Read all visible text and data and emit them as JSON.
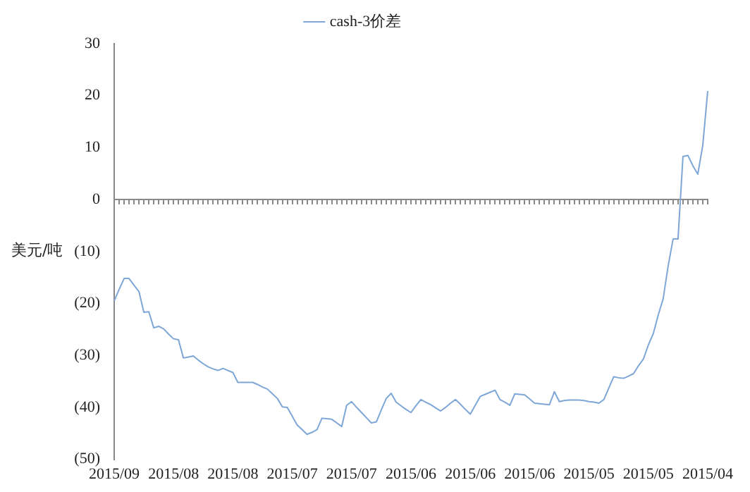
{
  "chart_data": {
    "type": "line",
    "ylabel": "美元/吨",
    "legend": "top",
    "marker": "none",
    "categories": [
      "2015/09",
      null,
      null,
      null,
      null,
      null,
      null,
      null,
      null,
      null,
      null,
      null,
      "2015/08",
      null,
      null,
      null,
      null,
      null,
      null,
      null,
      null,
      null,
      null,
      null,
      "2015/08",
      null,
      null,
      null,
      null,
      null,
      null,
      null,
      null,
      null,
      null,
      null,
      "2015/07",
      null,
      null,
      null,
      null,
      null,
      null,
      null,
      null,
      null,
      null,
      null,
      "2015/07",
      null,
      null,
      null,
      null,
      null,
      null,
      null,
      null,
      null,
      null,
      null,
      "2015/06",
      null,
      null,
      null,
      null,
      null,
      null,
      null,
      null,
      null,
      null,
      null,
      "2015/06",
      null,
      null,
      null,
      null,
      null,
      null,
      null,
      null,
      null,
      null,
      null,
      "2015/06",
      null,
      null,
      null,
      null,
      null,
      null,
      null,
      null,
      null,
      null,
      null,
      "2015/05",
      null,
      null,
      null,
      null,
      null,
      null,
      null,
      null,
      null,
      null,
      null,
      "2015/05",
      null,
      null,
      null,
      null,
      null,
      null,
      null,
      null,
      null,
      null,
      null,
      "2015/04"
    ],
    "series": [
      {
        "name": "cash-3价差",
        "color": "#7ea6d6",
        "values": [
          -19.5,
          -17.3,
          -15.2,
          -15.2,
          -16.5,
          -17.7,
          -21.7,
          -21.6,
          -24.7,
          -24.4,
          -24.9,
          -25.9,
          -26.8,
          -27,
          -30.5,
          -30.3,
          -30.1,
          -30.9,
          -31.6,
          -32.2,
          -32.6,
          -32.9,
          -32.5,
          -32.9,
          -33.3,
          -35.2,
          -35.2,
          -35.2,
          -35.2,
          -35.6,
          -36.1,
          -36.5,
          -37.4,
          -38.3,
          -39.9,
          -40,
          -41.7,
          -43.4,
          -44.3,
          -45.2,
          -44.8,
          -44.3,
          -42.1,
          -42.2,
          -42.3,
          -43,
          -43.7,
          -39.6,
          -38.9,
          -40,
          -41,
          -42,
          -43,
          -42.8,
          -40.5,
          -38.3,
          -37.3,
          -39,
          -39.7,
          -40.4,
          -41,
          -39.7,
          -38.5,
          -39,
          -39.5,
          -40.1,
          -40.7,
          -40,
          -39.2,
          -38.5,
          -39.4,
          -40.4,
          -41.3,
          -39.6,
          -37.9,
          -37.5,
          -37.1,
          -36.7,
          -38.5,
          -39,
          -39.6,
          -37.4,
          -37.5,
          -37.6,
          -38.4,
          -39.2,
          -39.3,
          -39.4,
          -39.5,
          -37,
          -38.9,
          -38.7,
          -38.6,
          -38.6,
          -38.6,
          -38.7,
          -38.9,
          -39,
          -39.2,
          -38.5,
          -36.3,
          -34.1,
          -34.3,
          -34.4,
          -34,
          -33.5,
          -32,
          -30.7,
          -28,
          -25.8,
          -22.2,
          -19.1,
          -12.8,
          -7.6,
          -7.6,
          8.3,
          8.5,
          6.5,
          4.9,
          10.4,
          20.9
        ]
      }
    ],
    "ylim": [
      -50,
      30
    ],
    "yticks": [
      {
        "value": -50,
        "label": "(50)"
      },
      {
        "value": -40,
        "label": "(40)"
      },
      {
        "value": -30,
        "label": "(30)"
      },
      {
        "value": -20,
        "label": "(20)"
      },
      {
        "value": -10,
        "label": "(10)"
      },
      0,
      10,
      20,
      30
    ]
  }
}
